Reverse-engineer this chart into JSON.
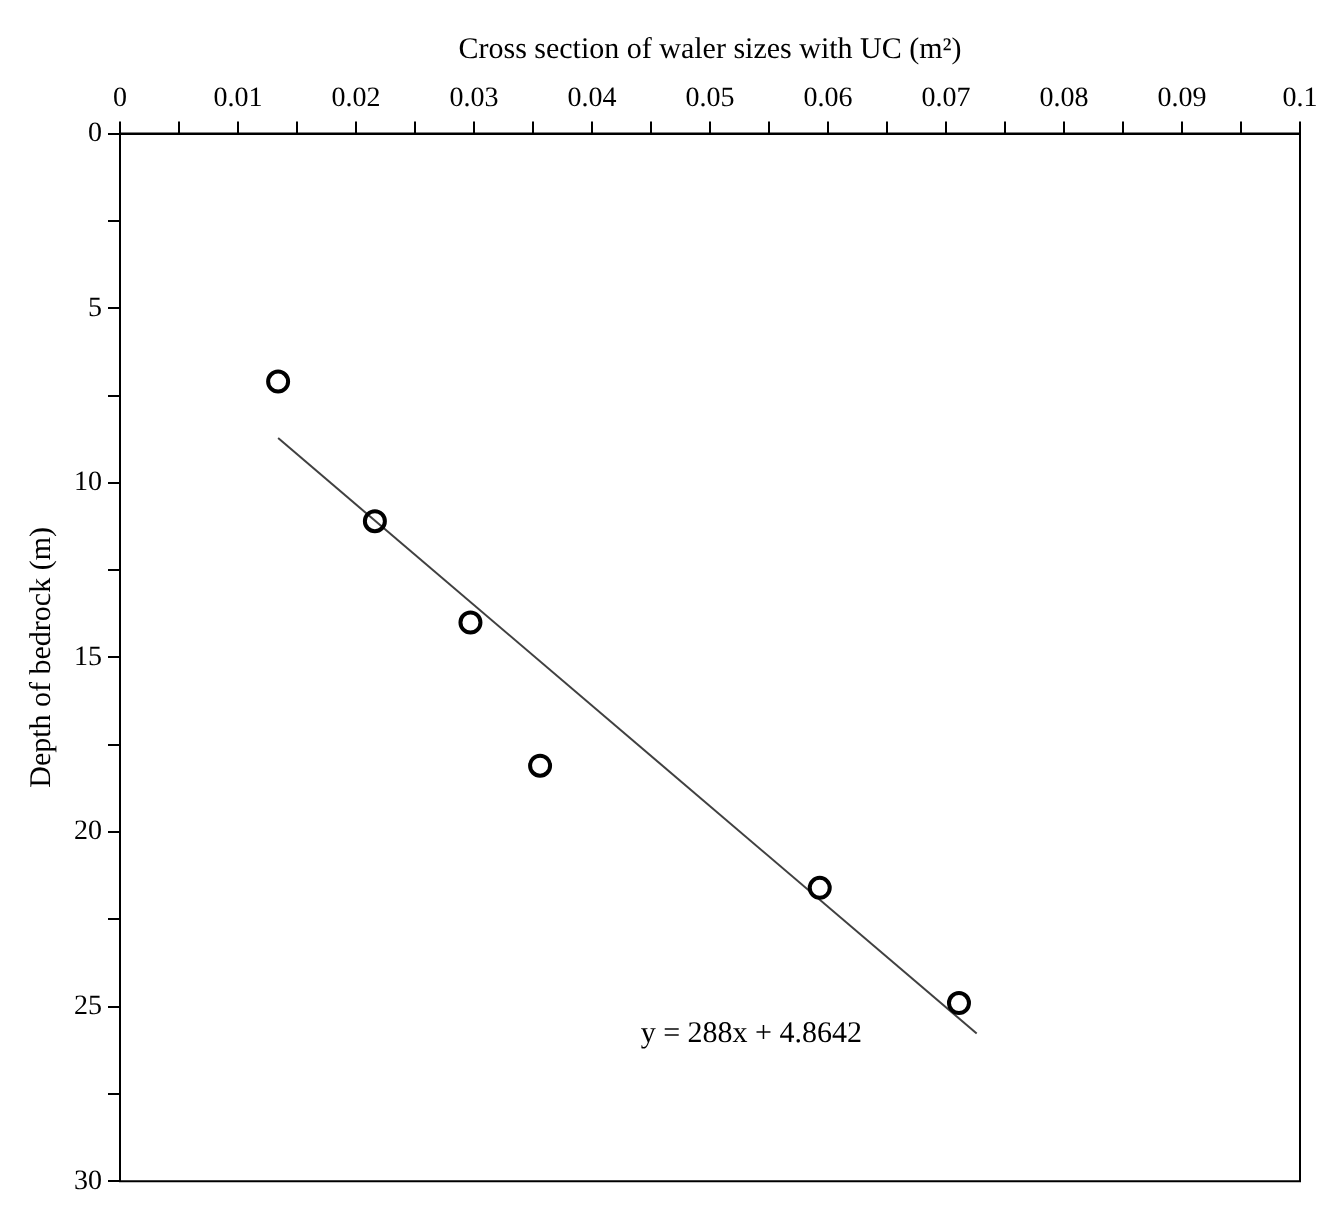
{
  "chart_data": {
    "type": "scatter",
    "xlabel": "Cross section of waler sizes with UC (m²)",
    "ylabel": "Depth of bedrock (m)",
    "xlim": [
      0,
      0.1
    ],
    "xticks": [
      0,
      {
        "value": 0.005,
        "label": null
      },
      0.01,
      {
        "value": 0.015,
        "label": null
      },
      0.02,
      {
        "value": 0.025,
        "label": null
      },
      0.03,
      {
        "value": 0.035,
        "label": null
      },
      0.04,
      {
        "value": 0.045,
        "label": null
      },
      0.05,
      {
        "value": 0.055,
        "label": null
      },
      0.06,
      {
        "value": 0.065,
        "label": null
      },
      0.07,
      {
        "value": 0.075,
        "label": null
      },
      0.08,
      {
        "value": 0.085,
        "label": null
      },
      0.09,
      {
        "value": 0.095,
        "label": null
      },
      0.1
    ],
    "ylim": [
      30,
      0
    ],
    "yticks": [
      0,
      {
        "value": 2.5,
        "label": null
      },
      5,
      {
        "value": 7.5,
        "label": null
      },
      10,
      {
        "value": 12.5,
        "label": null
      },
      15,
      {
        "value": 17.5,
        "label": null
      },
      20,
      {
        "value": 22.5,
        "label": null
      },
      25,
      {
        "value": 27.5,
        "label": null
      },
      30
    ],
    "grid": false,
    "legend": false,
    "series": [
      {
        "marker": "circle",
        "color": "#000000",
        "x": [
          0.0134,
          0.0216,
          0.0297,
          0.0356,
          0.0593,
          0.0711
        ],
        "values": [
          7.1,
          11.1,
          14.0,
          18.1,
          21.6,
          24.9
        ]
      },
      {
        "type": "line",
        "marker": "none",
        "color": "#404040",
        "x": [
          0.0134,
          0.0726
        ],
        "values": [
          8.72,
          25.77
        ]
      }
    ],
    "annotations": [
      "y = 288x + 4.8642"
    ]
  }
}
